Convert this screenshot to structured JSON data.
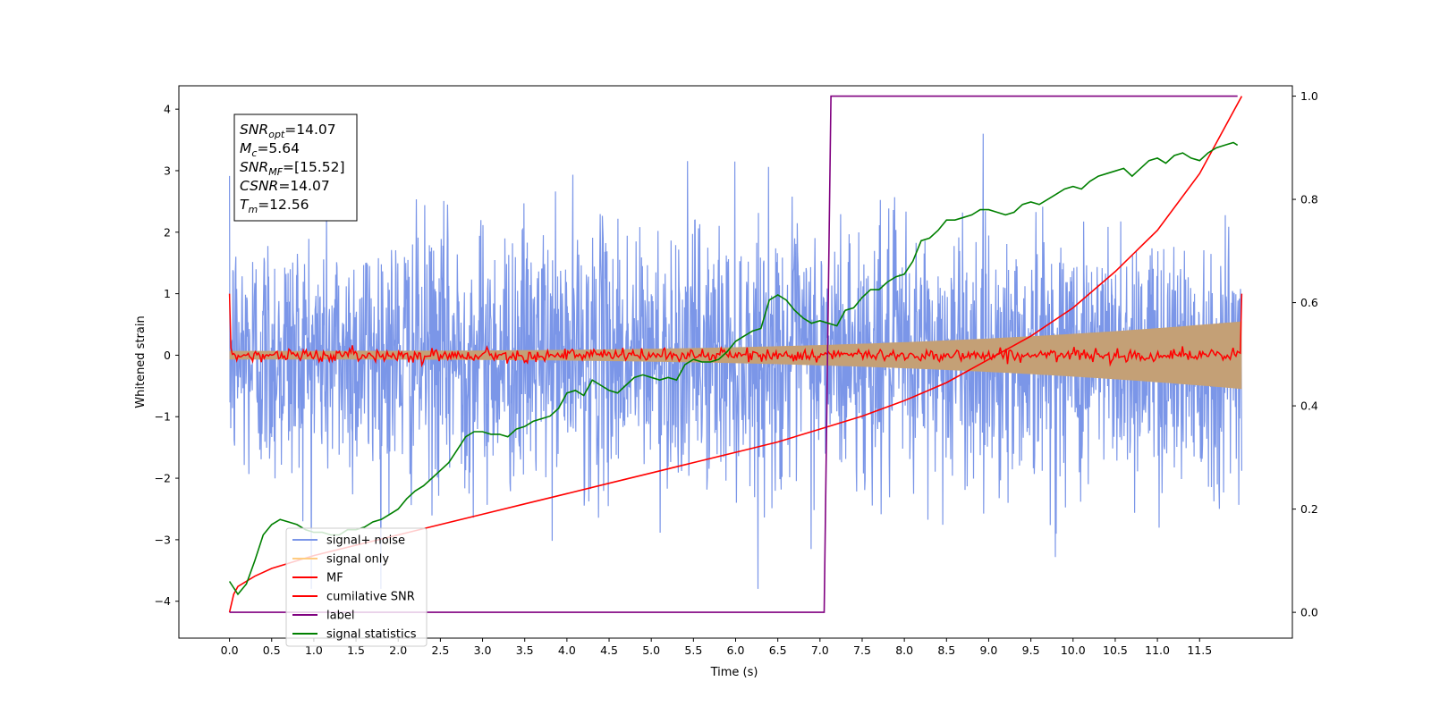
{
  "chart_data": {
    "type": "line",
    "xlabel": "Time (s)",
    "ylabel": "Whitened strain",
    "xlim": [
      -0.6,
      12.6
    ],
    "ylim_left": [
      -4.6,
      4.38
    ],
    "ylim_right": [
      -0.05,
      1.02
    ],
    "x_ticks": [
      "0.0",
      "0.5",
      "1.0",
      "1.5",
      "2.0",
      "2.5",
      "3.0",
      "3.5",
      "4.0",
      "4.5",
      "5.0",
      "5.5",
      "6.0",
      "6.5",
      "7.0",
      "7.5",
      "8.0",
      "8.5",
      "9.0",
      "9.5",
      "10.0",
      "10.5",
      "11.0",
      "11.5"
    ],
    "y_ticks_left": [
      "4",
      "3",
      "2",
      "1",
      "0",
      "−1",
      "−2",
      "−3",
      "−4"
    ],
    "y_ticks_right": [
      "1.0",
      "0.8",
      "0.6",
      "0.4",
      "0.2",
      "0.0"
    ],
    "annotation": {
      "lines": [
        {
          "sym": "SNR",
          "sub": "opt",
          "val": "=14.07"
        },
        {
          "sym": "M",
          "sub": "c",
          "val": "=5.64"
        },
        {
          "sym": "SNR",
          "sub": "MF",
          "val": "=[15.52]"
        },
        {
          "sym": "CSNR",
          "sub": "",
          "val": "=14.07"
        },
        {
          "sym": "T",
          "sub": "m",
          "val": "=12.56"
        }
      ]
    },
    "legend": {
      "placement": "lower-left",
      "entries": [
        {
          "label": "signal+ noise",
          "color": "#7b96e8"
        },
        {
          "label": "signal only",
          "color": "#ffcc80"
        },
        {
          "label": "MF",
          "color": "#ff0000"
        },
        {
          "label": "cumilative SNR",
          "color": "#ff0000"
        },
        {
          "label": "label",
          "color": "#800080"
        },
        {
          "label": "signal statistics",
          "color": "#008000"
        }
      ]
    },
    "series": [
      {
        "name": "signal+ noise",
        "axis": "left",
        "color": "#7b96e8",
        "kind": "noise",
        "x_range": [
          0,
          12
        ],
        "std": 1.05,
        "max": 4.0,
        "min": -3.8
      },
      {
        "name": "signal only",
        "axis": "left",
        "color": "#c4a076",
        "kind": "chirp_envelope",
        "x_range": [
          0,
          12
        ],
        "amp_start": 0.07,
        "amp_end": 0.55
      },
      {
        "name": "MF",
        "axis": "left",
        "color": "#ff0000",
        "kind": "noise_small",
        "x_range": [
          0,
          12
        ],
        "std": 0.05,
        "edge_value": 1.0
      },
      {
        "name": "cumilative SNR",
        "axis": "right",
        "color": "#ff0000",
        "x": [
          0.0,
          0.05,
          0.1,
          0.3,
          0.5,
          1.0,
          1.5,
          2.0,
          2.5,
          3.0,
          3.5,
          4.0,
          4.5,
          5.0,
          5.5,
          6.0,
          6.5,
          7.0,
          7.5,
          8.0,
          8.5,
          9.0,
          9.5,
          10.0,
          10.5,
          11.0,
          11.5,
          12.0
        ],
        "y": [
          0.0,
          0.035,
          0.05,
          0.07,
          0.085,
          0.11,
          0.13,
          0.15,
          0.17,
          0.19,
          0.21,
          0.23,
          0.25,
          0.27,
          0.29,
          0.31,
          0.33,
          0.355,
          0.38,
          0.41,
          0.445,
          0.49,
          0.535,
          0.59,
          0.66,
          0.74,
          0.85,
          1.0
        ]
      },
      {
        "name": "label",
        "axis": "right",
        "color": "#800080",
        "x": [
          0.0,
          7.05,
          7.13,
          11.95
        ],
        "y": [
          0.0,
          0.0,
          1.0,
          1.0
        ]
      },
      {
        "name": "signal statistics",
        "axis": "right",
        "color": "#008000",
        "x": [
          0.0,
          0.1,
          0.2,
          0.3,
          0.4,
          0.5,
          0.6,
          0.7,
          0.8,
          0.9,
          1.0,
          1.1,
          1.2,
          1.3,
          1.4,
          1.5,
          1.6,
          1.7,
          1.8,
          1.9,
          2.0,
          2.1,
          2.2,
          2.3,
          2.4,
          2.5,
          2.6,
          2.7,
          2.8,
          2.9,
          3.0,
          3.1,
          3.2,
          3.3,
          3.4,
          3.5,
          3.6,
          3.7,
          3.8,
          3.9,
          4.0,
          4.1,
          4.2,
          4.3,
          4.4,
          4.5,
          4.6,
          4.7,
          4.8,
          4.9,
          5.0,
          5.1,
          5.2,
          5.3,
          5.4,
          5.5,
          5.6,
          5.7,
          5.8,
          5.9,
          6.0,
          6.1,
          6.2,
          6.3,
          6.4,
          6.5,
          6.6,
          6.7,
          6.8,
          6.9,
          7.0,
          7.1,
          7.2,
          7.3,
          7.4,
          7.5,
          7.6,
          7.7,
          7.8,
          7.9,
          8.0,
          8.1,
          8.2,
          8.3,
          8.4,
          8.5,
          8.6,
          8.7,
          8.8,
          8.9,
          9.0,
          9.1,
          9.2,
          9.3,
          9.4,
          9.5,
          9.6,
          9.7,
          9.8,
          9.9,
          10.0,
          10.1,
          10.2,
          10.3,
          10.4,
          10.5,
          10.6,
          10.7,
          10.8,
          10.9,
          11.0,
          11.1,
          11.2,
          11.3,
          11.4,
          11.5,
          11.6,
          11.7,
          11.8,
          11.9,
          11.95
        ],
        "y": [
          0.06,
          0.035,
          0.055,
          0.1,
          0.15,
          0.17,
          0.18,
          0.175,
          0.17,
          0.16,
          0.155,
          0.155,
          0.15,
          0.15,
          0.16,
          0.16,
          0.165,
          0.175,
          0.18,
          0.19,
          0.2,
          0.22,
          0.235,
          0.245,
          0.26,
          0.275,
          0.29,
          0.315,
          0.34,
          0.35,
          0.35,
          0.345,
          0.345,
          0.34,
          0.355,
          0.36,
          0.37,
          0.375,
          0.38,
          0.395,
          0.425,
          0.43,
          0.42,
          0.45,
          0.44,
          0.43,
          0.425,
          0.44,
          0.455,
          0.46,
          0.455,
          0.45,
          0.455,
          0.45,
          0.48,
          0.49,
          0.485,
          0.485,
          0.49,
          0.505,
          0.525,
          0.535,
          0.545,
          0.55,
          0.605,
          0.615,
          0.605,
          0.585,
          0.57,
          0.56,
          0.565,
          0.56,
          0.555,
          0.585,
          0.59,
          0.61,
          0.625,
          0.625,
          0.64,
          0.65,
          0.655,
          0.68,
          0.72,
          0.725,
          0.74,
          0.76,
          0.76,
          0.765,
          0.77,
          0.78,
          0.78,
          0.775,
          0.77,
          0.775,
          0.79,
          0.795,
          0.79,
          0.8,
          0.81,
          0.82,
          0.825,
          0.82,
          0.835,
          0.845,
          0.85,
          0.855,
          0.86,
          0.845,
          0.86,
          0.875,
          0.88,
          0.87,
          0.885,
          0.89,
          0.88,
          0.875,
          0.89,
          0.9,
          0.905,
          0.91,
          0.905
        ]
      }
    ]
  }
}
